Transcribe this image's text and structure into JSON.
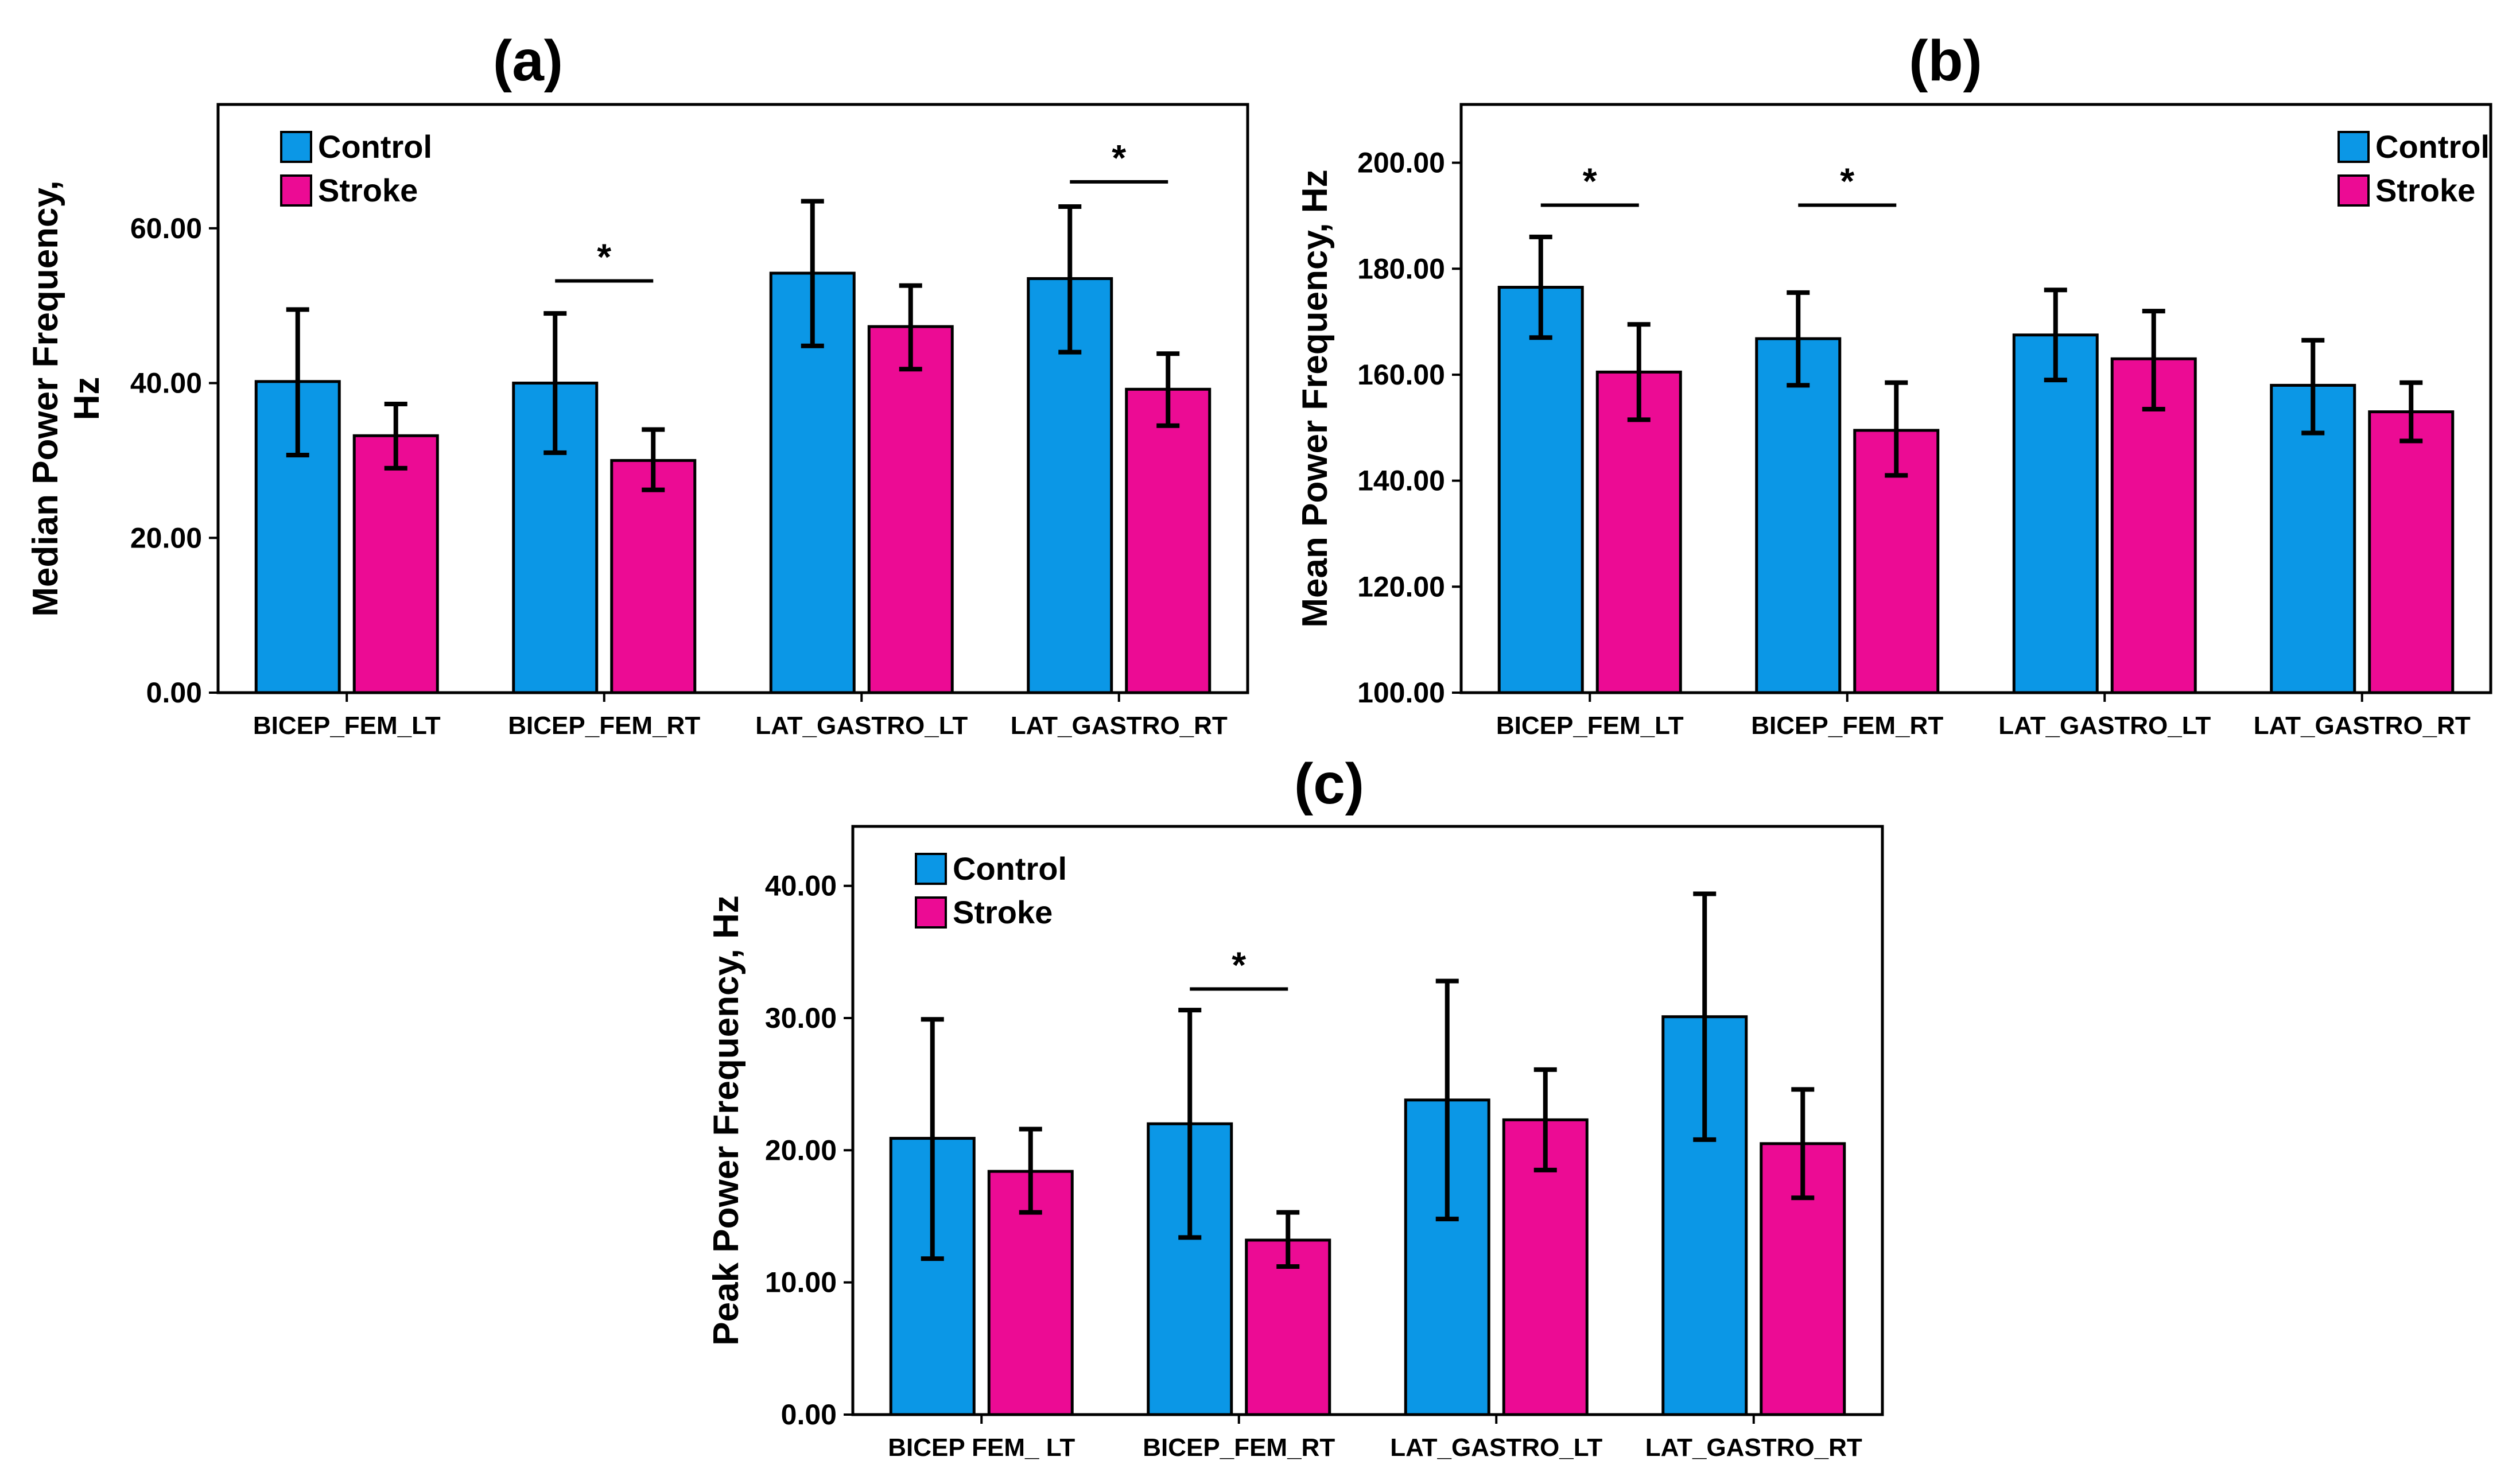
{
  "figure": {
    "series_colors": {
      "Control": "#0b97e6",
      "Stroke": "#ec0b94"
    },
    "outline_color": "#000000"
  },
  "chart_data": [
    {
      "panel": "(a)",
      "type": "bar",
      "categories": [
        "BICEP_FEM_LT",
        "BICEP_FEM_RT",
        "LAT_GASTRO_LT",
        "LAT_GASTRO_RT"
      ],
      "series": [
        {
          "name": "Control",
          "values": [
            40.2,
            40.0,
            54.2,
            53.5
          ],
          "err_low": [
            30.7,
            31.0,
            44.8,
            44.0
          ],
          "err_high": [
            49.5,
            49.0,
            63.5,
            62.8
          ]
        },
        {
          "name": "Stroke",
          "values": [
            33.2,
            30.0,
            47.3,
            39.2
          ],
          "err_low": [
            29.0,
            26.2,
            41.8,
            34.5
          ],
          "err_high": [
            37.3,
            34.0,
            52.6,
            43.8
          ]
        }
      ],
      "ylabel": "Median Power Frequency, Hz",
      "ylabel_lines": [
        "Median Power Frequency,",
        "Hz"
      ],
      "xlabel": "",
      "ylim": [
        0,
        76
      ],
      "yticks": [
        0,
        20,
        40,
        60
      ],
      "ytick_labels": [
        "0.00",
        "20.00",
        "40.00",
        "60.00"
      ],
      "legend": {
        "entries": [
          "Control",
          "Stroke"
        ],
        "placement": "top-left"
      },
      "significance": [
        {
          "category": "BICEP_FEM_RT",
          "label": "*",
          "y": 53.2
        },
        {
          "category": "LAT_GASTRO_RT",
          "label": "*",
          "y": 66.0
        }
      ],
      "grid": false
    },
    {
      "panel": "(b)",
      "type": "bar",
      "categories": [
        "BICEP_FEM_LT",
        "BICEP_FEM_RT",
        "LAT_GASTRO_LT",
        "LAT_GASTRO_RT"
      ],
      "series": [
        {
          "name": "Control",
          "values": [
            176.5,
            166.8,
            167.5,
            158.0
          ],
          "err_low": [
            167.0,
            158.0,
            159.0,
            149.0
          ],
          "err_high": [
            186.0,
            175.5,
            176.0,
            166.5
          ]
        },
        {
          "name": "Stroke",
          "values": [
            160.5,
            149.5,
            163.0,
            153.0
          ],
          "err_low": [
            151.5,
            141.0,
            153.5,
            147.5
          ],
          "err_high": [
            169.5,
            158.5,
            172.0,
            158.5
          ]
        }
      ],
      "ylabel": "Mean Power Frequency, Hz",
      "ylabel_lines": [
        "Mean Power Frequency, Hz"
      ],
      "xlabel": "",
      "ylim": [
        100,
        211
      ],
      "yticks": [
        100,
        120,
        140,
        160,
        180,
        200
      ],
      "ytick_labels": [
        "100.00",
        "120.00",
        "140.00",
        "160.00",
        "180.00",
        "200.00"
      ],
      "legend": {
        "entries": [
          "Control",
          "Stroke"
        ],
        "placement": "top-right"
      },
      "significance": [
        {
          "category": "BICEP_FEM_LT",
          "label": "*",
          "y": 192.0
        },
        {
          "category": "BICEP_FEM_RT",
          "label": "*",
          "y": 192.0
        }
      ],
      "grid": false
    },
    {
      "panel": "(c)",
      "type": "bar",
      "categories": [
        "BICEP FEM_ LT",
        "BICEP_FEM_RT",
        "LAT_GASTRO_LT",
        "LAT_GASTRO_RT"
      ],
      "series": [
        {
          "name": "Control",
          "values": [
            20.9,
            22.0,
            23.8,
            30.1
          ],
          "err_low": [
            11.8,
            13.4,
            14.8,
            20.8
          ],
          "err_high": [
            29.9,
            30.6,
            32.8,
            39.4
          ]
        },
        {
          "name": "Stroke",
          "values": [
            18.4,
            13.2,
            22.3,
            20.5
          ],
          "err_low": [
            15.3,
            11.2,
            18.5,
            16.4
          ],
          "err_high": [
            21.6,
            15.3,
            26.1,
            24.6
          ]
        }
      ],
      "ylabel": "Peak Power Frequency, Hz",
      "ylabel_lines": [
        "Peak Power Frequency, Hz"
      ],
      "xlabel": "",
      "ylim": [
        0,
        44.5
      ],
      "yticks": [
        0,
        10,
        20,
        30,
        40
      ],
      "ytick_labels": [
        "0.00",
        "10.00",
        "20.00",
        "30.00",
        "40.00"
      ],
      "legend": {
        "entries": [
          "Control",
          "Stroke"
        ],
        "placement": "top-left"
      },
      "significance": [
        {
          "category": "BICEP_FEM_RT",
          "label": "*",
          "y": 32.2
        }
      ],
      "grid": false
    }
  ]
}
